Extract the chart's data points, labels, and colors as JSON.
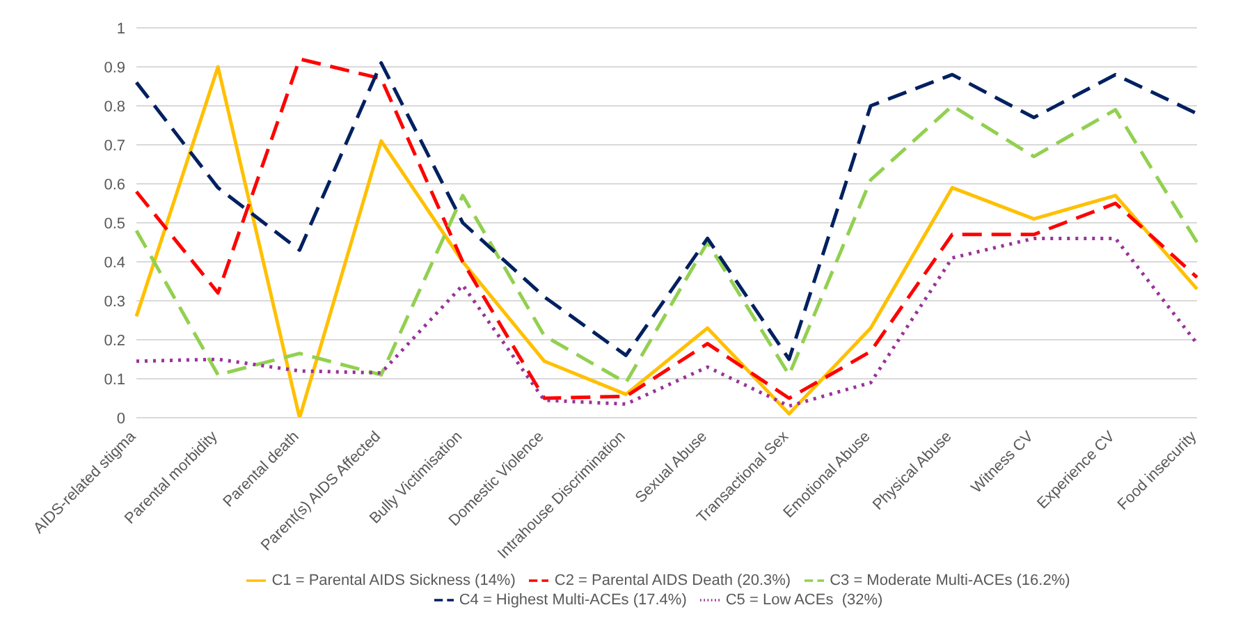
{
  "chart_data": {
    "type": "line",
    "categories": [
      "AIDS-related stigma",
      "Parental morbidity",
      "Parental death",
      "Parent(s) AIDS Affected",
      "Bully Victimisation",
      "Domestic Violence",
      "Intrahouse Discrimination",
      "Sexual Abuse",
      "Transactional Sex",
      "Emotional Abuse",
      "Physical Abuse",
      "Witness CV",
      "Experience CV",
      "Food insecurity"
    ],
    "series": [
      {
        "name": "C1 = Parental AIDS Sickness (14%)",
        "color": "#ffc000",
        "line_style": "solid",
        "values": [
          0.26,
          0.9,
          0,
          0.71,
          0.4,
          0.145,
          0.06,
          0.23,
          0.01,
          0.23,
          0.59,
          0.51,
          0.57,
          0.33
        ]
      },
      {
        "name": "C2 = Parental AIDS Death (20.3%)",
        "color": "#ff0000",
        "line_style": "dashed",
        "values": [
          0.58,
          0.32,
          0.92,
          0.87,
          0.4,
          0.05,
          0.055,
          0.19,
          0.05,
          0.17,
          0.47,
          0.47,
          0.55,
          0.36
        ]
      },
      {
        "name": "C3 = Moderate Multi-ACEs (16.2%)",
        "color": "#92d050",
        "line_style": "dashed",
        "values": [
          0.48,
          0.11,
          0.165,
          0.11,
          0.57,
          0.21,
          0.09,
          0.45,
          0.11,
          0.61,
          0.8,
          0.67,
          0.79,
          0.45
        ]
      },
      {
        "name": "C4 = Highest Multi-ACEs (17.4%)",
        "color": "#002060",
        "line_style": "dashed",
        "values": [
          0.86,
          0.59,
          0.43,
          0.91,
          0.5,
          0.31,
          0.16,
          0.46,
          0.15,
          0.8,
          0.88,
          0.77,
          0.88,
          0.78
        ]
      },
      {
        "name": "C5 = Low ACEs  (32%)",
        "color": "#993399",
        "line_style": "dotted",
        "values": [
          0.145,
          0.15,
          0.12,
          0.115,
          0.34,
          0.045,
          0.035,
          0.13,
          0.03,
          0.09,
          0.41,
          0.46,
          0.46,
          0.19
        ]
      }
    ],
    "ylim": [
      0,
      1
    ],
    "yticks": [
      0,
      0.1,
      0.2,
      0.3,
      0.4,
      0.5,
      0.6,
      0.7,
      0.8,
      0.9,
      1
    ],
    "grid": "y",
    "legend": "bottom",
    "marker": "none"
  }
}
